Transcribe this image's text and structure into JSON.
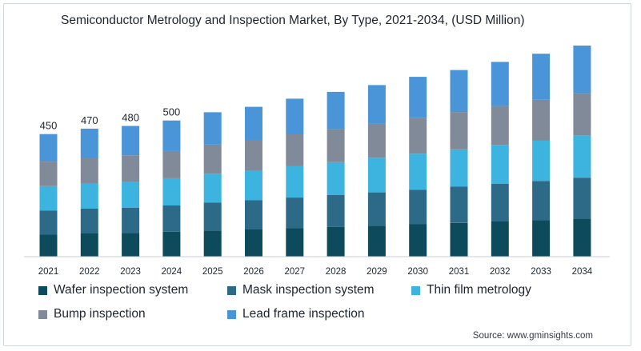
{
  "chart_data": {
    "type": "bar",
    "stacked": true,
    "title": "Semiconductor Metrology and Inspection Market, By Type, 2021-2034, (USD Million)",
    "xlabel": "",
    "ylabel": "",
    "categories": [
      "2021",
      "2022",
      "2023",
      "2024",
      "2025",
      "2026",
      "2027",
      "2028",
      "2029",
      "2030",
      "2031",
      "2032",
      "2033",
      "2034"
    ],
    "totals_labeled": [
      "450",
      "470",
      "480",
      "500",
      "",
      "",
      "",
      "",
      "",
      "",
      "",
      "",
      "",
      ""
    ],
    "series": [
      {
        "name": "Wafer inspection system",
        "color": "#0c4a5c",
        "values": [
          82,
          85,
          87,
          91,
          96,
          100,
          105,
          109,
          114,
          119,
          124,
          129,
          134,
          140
        ]
      },
      {
        "name": "Mask inspection system",
        "color": "#2d6a87",
        "values": [
          87,
          91,
          93,
          97,
          103,
          107,
          112,
          117,
          122,
          127,
          133,
          138,
          144,
          150
        ]
      },
      {
        "name": "Thin film metrology",
        "color": "#3db3e0",
        "values": [
          90,
          94,
          96,
          100,
          106,
          110,
          116,
          121,
          126,
          132,
          137,
          143,
          149,
          155
        ]
      },
      {
        "name": "Bump inspection",
        "color": "#808a98",
        "values": [
          90,
          94,
          96,
          100,
          106,
          110,
          116,
          121,
          126,
          132,
          137,
          143,
          149,
          155
        ]
      },
      {
        "name": "Lead frame inspection",
        "color": "#4a95d8",
        "values": [
          101,
          106,
          108,
          112,
          119,
          123,
          131,
          137,
          142,
          150,
          154,
          162,
          169,
          175
        ]
      }
    ],
    "ylim": [
      0,
      800
    ],
    "grid": false,
    "legend_position": "bottom"
  },
  "source": "Source: www.gminsights.com"
}
